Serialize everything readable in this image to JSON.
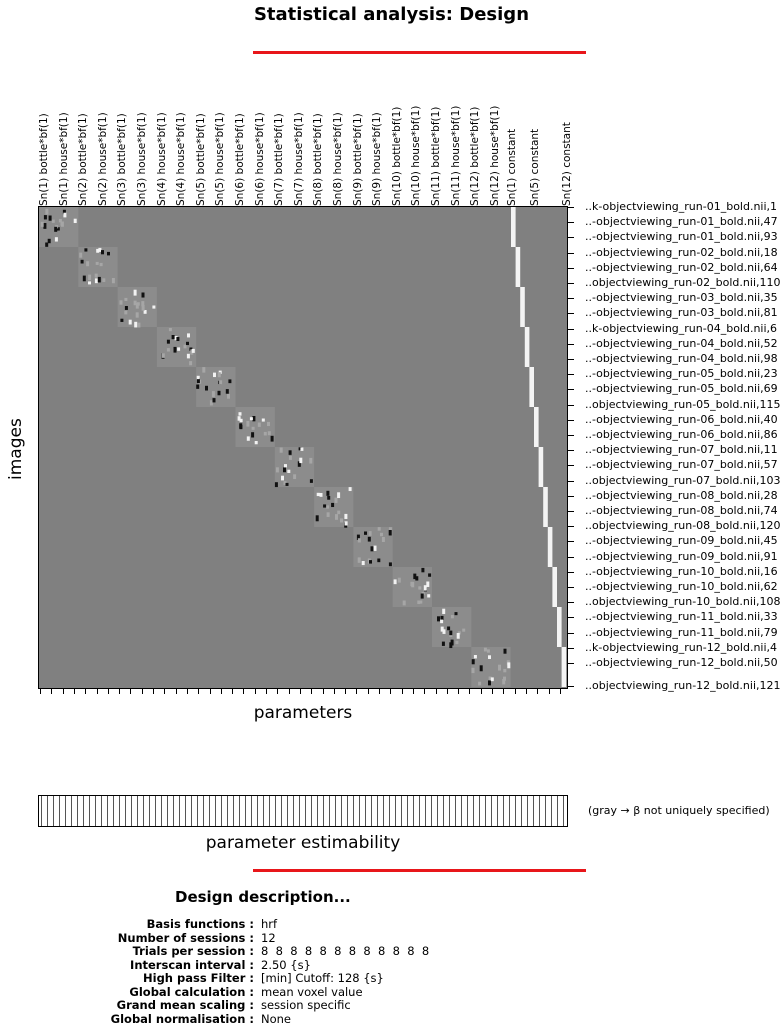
{
  "title": "Statistical analysis: Design",
  "columns": [
    "Sn(1) bottle*bf(1)",
    "Sn(1) house*bf(1)",
    "Sn(2) bottle*bf(1)",
    "Sn(2) house*bf(1)",
    "Sn(3) bottle*bf(1)",
    "Sn(3) house*bf(1)",
    "Sn(4) house*bf(1)",
    "Sn(4) house*bf(1)",
    "Sn(5) bottle*bf(1)",
    "Sn(5) house*bf(1)",
    "Sn(6) bottle*bf(1)",
    "Sn(6) house*bf(1)",
    "Sn(7) bottle*bf(1)",
    "Sn(7) house*bf(1)",
    "Sn(8) bottle*bf(1)",
    "Sn(8) house*bf(1)",
    "Sn(9) bottle*bf(1)",
    "Sn(9) house*bf(1)",
    "Sn(10) bottle*bf(1)",
    "Sn(10) house*bf(1)",
    "Sn(11) bottle*bf(1)",
    "Sn(11) house*bf(1)",
    "Sn(12) bottle*bf(1)",
    "Sn(12) house*bf(1)",
    "Sn(1) constant",
    "Sn(5) constant",
    "Sn(12) constant"
  ],
  "rows": [
    "..k-objectviewing_run-01_bold.nii,1",
    "..-objectviewing_run-01_bold.nii,47",
    "..-objectviewing_run-01_bold.nii,93",
    "..-objectviewing_run-02_bold.nii,18",
    "..-objectviewing_run-02_bold.nii,64",
    "..objectviewing_run-02_bold.nii,110",
    "..-objectviewing_run-03_bold.nii,35",
    "..-objectviewing_run-03_bold.nii,81",
    "..k-objectviewing_run-04_bold.nii,6",
    "..-objectviewing_run-04_bold.nii,52",
    "..-objectviewing_run-04_bold.nii,98",
    "..-objectviewing_run-05_bold.nii,23",
    "..-objectviewing_run-05_bold.nii,69",
    "..objectviewing_run-05_bold.nii,115",
    "..-objectviewing_run-06_bold.nii,40",
    "..-objectviewing_run-06_bold.nii,86",
    "..-objectviewing_run-07_bold.nii,11",
    "..-objectviewing_run-07_bold.nii,57",
    "..objectviewing_run-07_bold.nii,103",
    "..-objectviewing_run-08_bold.nii,28",
    "..-objectviewing_run-08_bold.nii,74",
    "..objectviewing_run-08_bold.nii,120",
    "..-objectviewing_run-09_bold.nii,45",
    "..-objectviewing_run-09_bold.nii,91",
    "..-objectviewing_run-10_bold.nii,16",
    "..-objectviewing_run-10_bold.nii,62",
    "..objectviewing_run-10_bold.nii,108",
    "..-objectviewing_run-11_bold.nii,33",
    "..-objectviewing_run-11_bold.nii,79",
    "..k-objectviewing_run-12_bold.nii,4",
    "..-objectviewing_run-12_bold.nii,50",
    "..objectviewing_run-12_bold.nii,121"
  ],
  "y_axis_label": "images",
  "x_axis_label": "parameters",
  "estimability_label": "parameter estimability",
  "estimability_note": "(gray → β not uniquely specified)",
  "description_title": "Design description...",
  "description": [
    {
      "key": "Basis functions :",
      "value": "hrf"
    },
    {
      "key": "Number of sessions :",
      "value": "12"
    },
    {
      "key": "Trials per session :",
      "value": "8  8  8  8  8  8  8  8  8  8  8  8"
    },
    {
      "key": "Interscan interval :",
      "value": "2.50 {s}"
    },
    {
      "key": "High pass Filter :",
      "value": "[min] Cutoff: 128 {s}"
    },
    {
      "key": "Global calculation :",
      "value": "mean voxel value"
    },
    {
      "key": "Grand mean scaling :",
      "value": "session specific"
    },
    {
      "key": "Global normalisation :",
      "value": "None"
    }
  ],
  "colors": {
    "accent_red": "#e8161a",
    "matrix_gray": "#808080"
  }
}
